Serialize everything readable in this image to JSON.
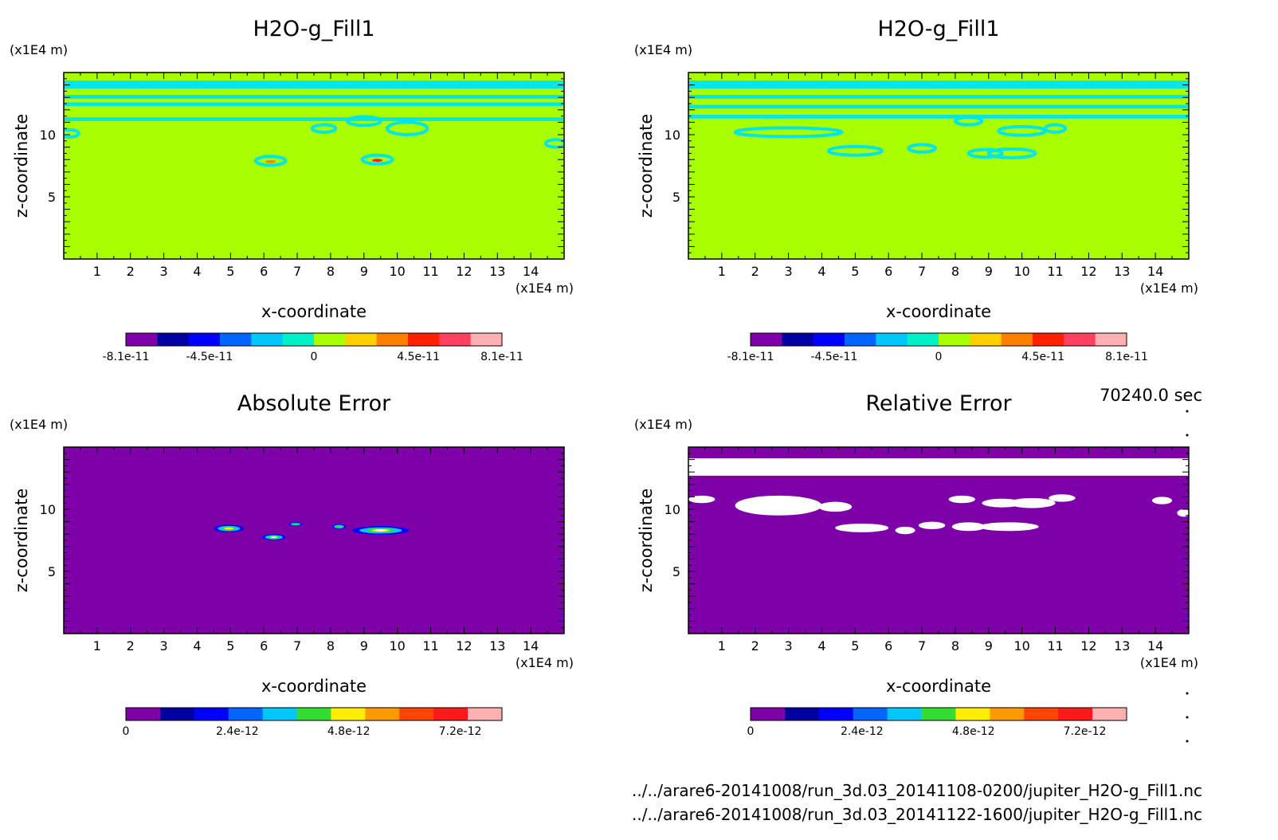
{
  "colors": {
    "background": "#ffffff",
    "field_zero": "#a8ff00",
    "field_cyan": "#00e6e6",
    "field_purple": "#7e00a8",
    "field_white": "#ffffff",
    "palette": [
      "#7e00a8",
      "#0000a0",
      "#0000ff",
      "#0066ff",
      "#00c8ff",
      "#00f0c8",
      "#a8ff00",
      "#ffd000",
      "#ff8000",
      "#ff2000",
      "#ff4060",
      "#ffb0b0"
    ],
    "palette_error": [
      "#7e00a8",
      "#0000a0",
      "#0000ff",
      "#0066ff",
      "#00c8ff",
      "#33dd33",
      "#ffee00",
      "#ff9900",
      "#ff4400",
      "#ff1a1a",
      "#ffb0b0"
    ]
  },
  "time_label": "70240.0 sec",
  "files": [
    "../../arare6-20141008/run_3d.03_20141108-0200/jupiter_H2O-g_Fill1.nc",
    "../../arare6-20141008/run_3d.03_20141122-1600/jupiter_H2O-g_Fill1.nc"
  ],
  "panels": [
    {
      "title": "H2O-g_Fill1",
      "xlabel": "x-coordinate",
      "ylabel": "z-coordinate",
      "xunit": "(x1E4 m)",
      "yunit": "(x1E4 m)",
      "xticks": [
        "1",
        "2",
        "3",
        "4",
        "5",
        "6",
        "7",
        "8",
        "9",
        "10",
        "11",
        "12",
        "13",
        "14"
      ],
      "yticks": [
        "5",
        "10"
      ],
      "colorbar_labels": [
        "-8.1e-11",
        "-4.5e-11",
        "0",
        "4.5e-11",
        "8.1e-11"
      ]
    },
    {
      "title": "H2O-g_Fill1",
      "xlabel": "x-coordinate",
      "ylabel": "z-coordinate",
      "xunit": "(x1E4 m)",
      "yunit": "(x1E4 m)",
      "xticks": [
        "1",
        "2",
        "3",
        "4",
        "5",
        "6",
        "7",
        "8",
        "9",
        "10",
        "11",
        "12",
        "13",
        "14"
      ],
      "yticks": [
        "5",
        "10"
      ],
      "colorbar_labels": [
        "-8.1e-11",
        "-4.5e-11",
        "0",
        "4.5e-11",
        "8.1e-11"
      ]
    },
    {
      "title": "Absolute Error",
      "xlabel": "x-coordinate",
      "ylabel": "z-coordinate",
      "xunit": "(x1E4 m)",
      "yunit": "(x1E4 m)",
      "xticks": [
        "1",
        "2",
        "3",
        "4",
        "5",
        "6",
        "7",
        "8",
        "9",
        "10",
        "11",
        "12",
        "13",
        "14"
      ],
      "yticks": [
        "5",
        "10"
      ],
      "colorbar_labels": [
        "0",
        "2.4e-12",
        "4.8e-12",
        "7.2e-12"
      ]
    },
    {
      "title": "Relative Error",
      "xlabel": "x-coordinate",
      "ylabel": "z-coordinate",
      "xunit": "(x1E4 m)",
      "yunit": "(x1E4 m)",
      "xticks": [
        "1",
        "2",
        "3",
        "4",
        "5",
        "6",
        "7",
        "8",
        "9",
        "10",
        "11",
        "12",
        "13",
        "14"
      ],
      "yticks": [
        "5",
        "10"
      ],
      "colorbar_labels": [
        "0",
        "2.4e-12",
        "4.8e-12",
        "7.2e-12"
      ]
    }
  ],
  "chart_data": [
    {
      "type": "heatmap",
      "title": "H2O-g_Fill1",
      "xlabel": "x-coordinate",
      "ylabel": "z-coordinate",
      "xlim": [
        0,
        15
      ],
      "ylim": [
        0,
        15
      ],
      "colorbar": {
        "min": -8.1e-11,
        "max": 8.1e-11,
        "tick_labels": [
          "-8.1e-11",
          "-4.5e-11",
          "0",
          "4.5e-11",
          "8.1e-11"
        ]
      },
      "bands_z": [
        [
          13.7,
          14.1
        ],
        [
          12.9,
          13.2
        ],
        [
          12.3,
          12.6
        ],
        [
          11.1,
          11.4
        ]
      ],
      "features": [
        {
          "x": 7.8,
          "z": 10.5,
          "rx": 0.35,
          "rz": 0.3
        },
        {
          "x": 9.0,
          "z": 11.1,
          "rx": 0.5,
          "rz": 0.35
        },
        {
          "x": 10.3,
          "z": 10.5,
          "rx": 0.6,
          "rz": 0.5
        },
        {
          "x": 6.2,
          "z": 7.9,
          "rx": 0.45,
          "rz": 0.35,
          "peak": 4.5e-11
        },
        {
          "x": 9.4,
          "z": 8.0,
          "rx": 0.45,
          "rz": 0.35,
          "peak": 8.1e-11
        },
        {
          "x": 0.15,
          "z": 10.1,
          "rx": 0.3,
          "rz": 0.3
        },
        {
          "x": 14.75,
          "z": 9.3,
          "rx": 0.3,
          "rz": 0.3
        }
      ]
    },
    {
      "type": "heatmap",
      "title": "H2O-g_Fill1",
      "xlabel": "x-coordinate",
      "ylabel": "z-coordinate",
      "xlim": [
        0,
        15
      ],
      "ylim": [
        0,
        15
      ],
      "colorbar": {
        "min": -8.1e-11,
        "max": 8.1e-11,
        "tick_labels": [
          "-8.1e-11",
          "-4.5e-11",
          "0",
          "4.5e-11",
          "8.1e-11"
        ]
      },
      "bands_z": [
        [
          13.7,
          14.1
        ],
        [
          12.9,
          13.2
        ],
        [
          12.1,
          12.4
        ],
        [
          11.3,
          11.6
        ]
      ],
      "features": [
        {
          "x": 3.0,
          "z": 10.2,
          "rx": 1.6,
          "rz": 0.35
        },
        {
          "x": 5.0,
          "z": 8.7,
          "rx": 0.8,
          "rz": 0.35
        },
        {
          "x": 7.0,
          "z": 8.9,
          "rx": 0.4,
          "rz": 0.3
        },
        {
          "x": 8.9,
          "z": 8.5,
          "rx": 0.5,
          "rz": 0.3
        },
        {
          "x": 9.7,
          "z": 8.5,
          "rx": 0.7,
          "rz": 0.35
        },
        {
          "x": 10.0,
          "z": 10.3,
          "rx": 0.7,
          "rz": 0.35
        },
        {
          "x": 8.4,
          "z": 11.1,
          "rx": 0.4,
          "rz": 0.3
        },
        {
          "x": 11.0,
          "z": 10.5,
          "rx": 0.3,
          "rz": 0.3
        }
      ]
    },
    {
      "type": "heatmap",
      "title": "Absolute Error",
      "xlabel": "x-coordinate",
      "ylabel": "z-coordinate",
      "xlim": [
        0,
        15
      ],
      "ylim": [
        0,
        15
      ],
      "colorbar": {
        "min": 0,
        "max": 8.1e-12,
        "tick_labels": [
          "0",
          "2.4e-12",
          "4.8e-12",
          "7.2e-12"
        ]
      },
      "features": [
        {
          "x": 4.95,
          "z": 8.45,
          "rx": 0.45,
          "rz": 0.3,
          "peak": 4.8e-12
        },
        {
          "x": 6.3,
          "z": 7.75,
          "rx": 0.35,
          "rz": 0.25,
          "peak": 8.1e-12
        },
        {
          "x": 6.95,
          "z": 8.8,
          "rx": 0.2,
          "rz": 0.15,
          "peak": 2.4e-12
        },
        {
          "x": 8.25,
          "z": 8.6,
          "rx": 0.2,
          "rz": 0.2,
          "peak": 3.6e-12
        },
        {
          "x": 9.5,
          "z": 8.3,
          "rx": 0.85,
          "rz": 0.35,
          "peak": 8.1e-12
        }
      ]
    },
    {
      "type": "heatmap",
      "title": "Relative Error",
      "xlabel": "x-coordinate",
      "ylabel": "z-coordinate",
      "xlim": [
        0,
        15
      ],
      "ylim": [
        0,
        15
      ],
      "colorbar": {
        "min": 0,
        "max": 8.1e-12,
        "tick_labels": [
          "0",
          "2.4e-12",
          "4.8e-12",
          "7.2e-12"
        ]
      },
      "undefined_region": {
        "z_top": 14.1,
        "z_bottom": 12.7
      },
      "features": [
        {
          "x": 2.7,
          "z": 10.3,
          "rx": 1.3,
          "rz": 0.8
        },
        {
          "x": 4.4,
          "z": 10.2,
          "rx": 0.5,
          "rz": 0.4
        },
        {
          "x": 5.2,
          "z": 8.5,
          "rx": 0.8,
          "rz": 0.35
        },
        {
          "x": 6.5,
          "z": 8.3,
          "rx": 0.3,
          "rz": 0.3
        },
        {
          "x": 7.3,
          "z": 8.7,
          "rx": 0.4,
          "rz": 0.3
        },
        {
          "x": 8.4,
          "z": 8.6,
          "rx": 0.5,
          "rz": 0.35
        },
        {
          "x": 9.6,
          "z": 8.6,
          "rx": 0.9,
          "rz": 0.35
        },
        {
          "x": 8.2,
          "z": 10.8,
          "rx": 0.4,
          "rz": 0.3
        },
        {
          "x": 9.4,
          "z": 10.5,
          "rx": 0.6,
          "rz": 0.35
        },
        {
          "x": 10.3,
          "z": 10.5,
          "rx": 0.7,
          "rz": 0.4
        },
        {
          "x": 11.2,
          "z": 10.9,
          "rx": 0.4,
          "rz": 0.3
        },
        {
          "x": 14.2,
          "z": 10.7,
          "rx": 0.3,
          "rz": 0.3
        },
        {
          "x": 14.85,
          "z": 9.7,
          "rx": 0.2,
          "rz": 0.3
        },
        {
          "x": 0.4,
          "z": 10.8,
          "rx": 0.4,
          "rz": 0.3
        }
      ]
    }
  ]
}
